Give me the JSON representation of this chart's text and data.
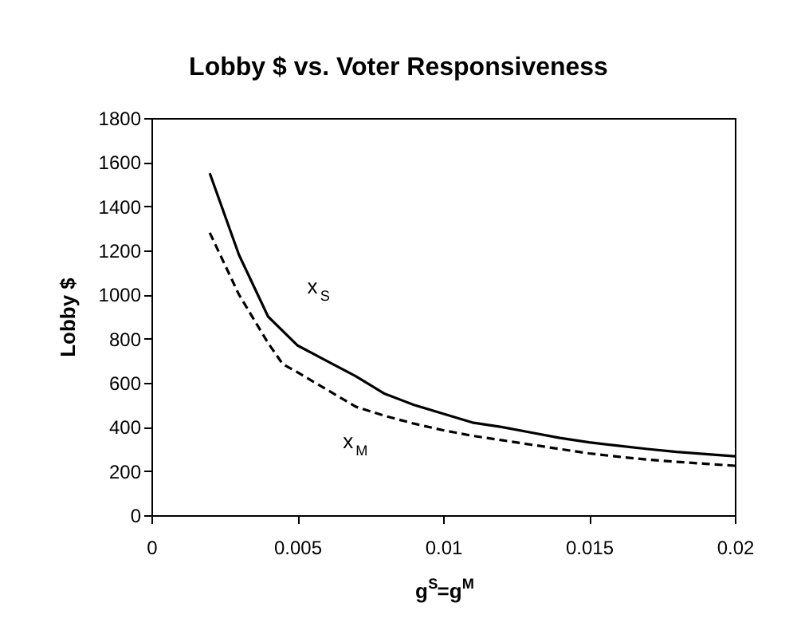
{
  "chart_data": {
    "type": "line",
    "title": "Lobby $ vs. Voter Responsiveness",
    "xlabel": "g$^{S}$=g$^{M}$",
    "ylabel": "Lobby $",
    "series": [
      {
        "name": "x$_{S}$",
        "color": "#000000",
        "line_style": "solid",
        "x": [
          0.002,
          0.003,
          0.004,
          0.005,
          0.006,
          0.007,
          0.008,
          0.009,
          0.01,
          0.011,
          0.012,
          0.013,
          0.014,
          0.015,
          0.016,
          0.017,
          0.018,
          0.019,
          0.02
        ],
        "values": [
          1550,
          1180,
          900,
          770,
          700,
          630,
          550,
          500,
          460,
          420,
          400,
          375,
          350,
          330,
          315,
          300,
          287,
          277,
          267
        ]
      },
      {
        "name": "x$_{M}$",
        "color": "#000000",
        "line_style": "dashed",
        "x": [
          0.002,
          0.003,
          0.004,
          0.0045,
          0.005,
          0.006,
          0.007,
          0.008,
          0.009,
          0.01,
          0.011,
          0.012,
          0.013,
          0.014,
          0.015,
          0.016,
          0.017,
          0.018,
          0.019,
          0.02
        ],
        "values": [
          1280,
          1000,
          780,
          685,
          648,
          570,
          492,
          450,
          415,
          385,
          360,
          340,
          320,
          300,
          280,
          265,
          252,
          242,
          233,
          224
        ]
      }
    ],
    "xlim": [
      0,
      0.02
    ],
    "ylim": [
      0,
      1800
    ],
    "xticks": [
      0,
      0.005,
      0.01,
      0.015,
      0.02
    ],
    "yticks": [
      0,
      200,
      400,
      600,
      800,
      1000,
      1200,
      1400,
      1600,
      1800
    ],
    "grid": false,
    "marker": "none"
  }
}
